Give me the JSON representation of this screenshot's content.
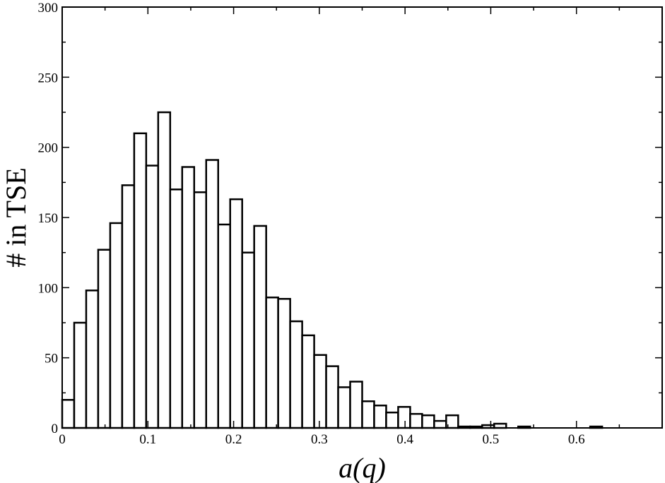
{
  "chart_data": {
    "type": "bar",
    "title": "",
    "xlabel": "a(q)",
    "ylabel": "# in TSE",
    "xlim": [
      0,
      0.7
    ],
    "ylim": [
      0,
      300
    ],
    "x_ticks": [
      0,
      0.1,
      0.2,
      0.3,
      0.4,
      0.5,
      0.6
    ],
    "x_tick_labels": [
      "0",
      "0.1",
      "0.2",
      "0.3",
      "0.4",
      "0.5",
      "0.6"
    ],
    "y_ticks": [
      0,
      50,
      100,
      150,
      200,
      250,
      300
    ],
    "y_tick_labels": [
      "0",
      "50",
      "100",
      "150",
      "200",
      "250",
      "300"
    ],
    "bin_width": 0.014,
    "bin_starts": [
      0,
      0.014,
      0.028,
      0.042,
      0.056,
      0.07,
      0.084,
      0.098,
      0.112,
      0.126,
      0.14,
      0.154,
      0.168,
      0.182,
      0.196,
      0.21,
      0.224,
      0.238,
      0.252,
      0.266,
      0.28,
      0.294,
      0.308,
      0.322,
      0.336,
      0.35,
      0.364,
      0.378,
      0.392,
      0.406,
      0.42,
      0.434,
      0.448,
      0.462,
      0.476,
      0.49,
      0.504,
      0.518,
      0.532,
      0.546,
      0.56,
      0.574,
      0.588,
      0.602,
      0.616,
      0.63,
      0.644,
      0.658,
      0.672,
      0.686
    ],
    "values": [
      20,
      75,
      98,
      127,
      146,
      173,
      210,
      187,
      225,
      170,
      186,
      168,
      191,
      145,
      163,
      125,
      144,
      93,
      92,
      76,
      66,
      52,
      44,
      29,
      33,
      19,
      16,
      11,
      15,
      10,
      9,
      5,
      9,
      1,
      1,
      2,
      3,
      0,
      1,
      0,
      0,
      0,
      0,
      0,
      1,
      0,
      0,
      0,
      0,
      0
    ],
    "grid": false,
    "colors": {
      "bar_fill": "#ffffff",
      "bar_stroke": "#000000",
      "axis": "#000000"
    }
  }
}
